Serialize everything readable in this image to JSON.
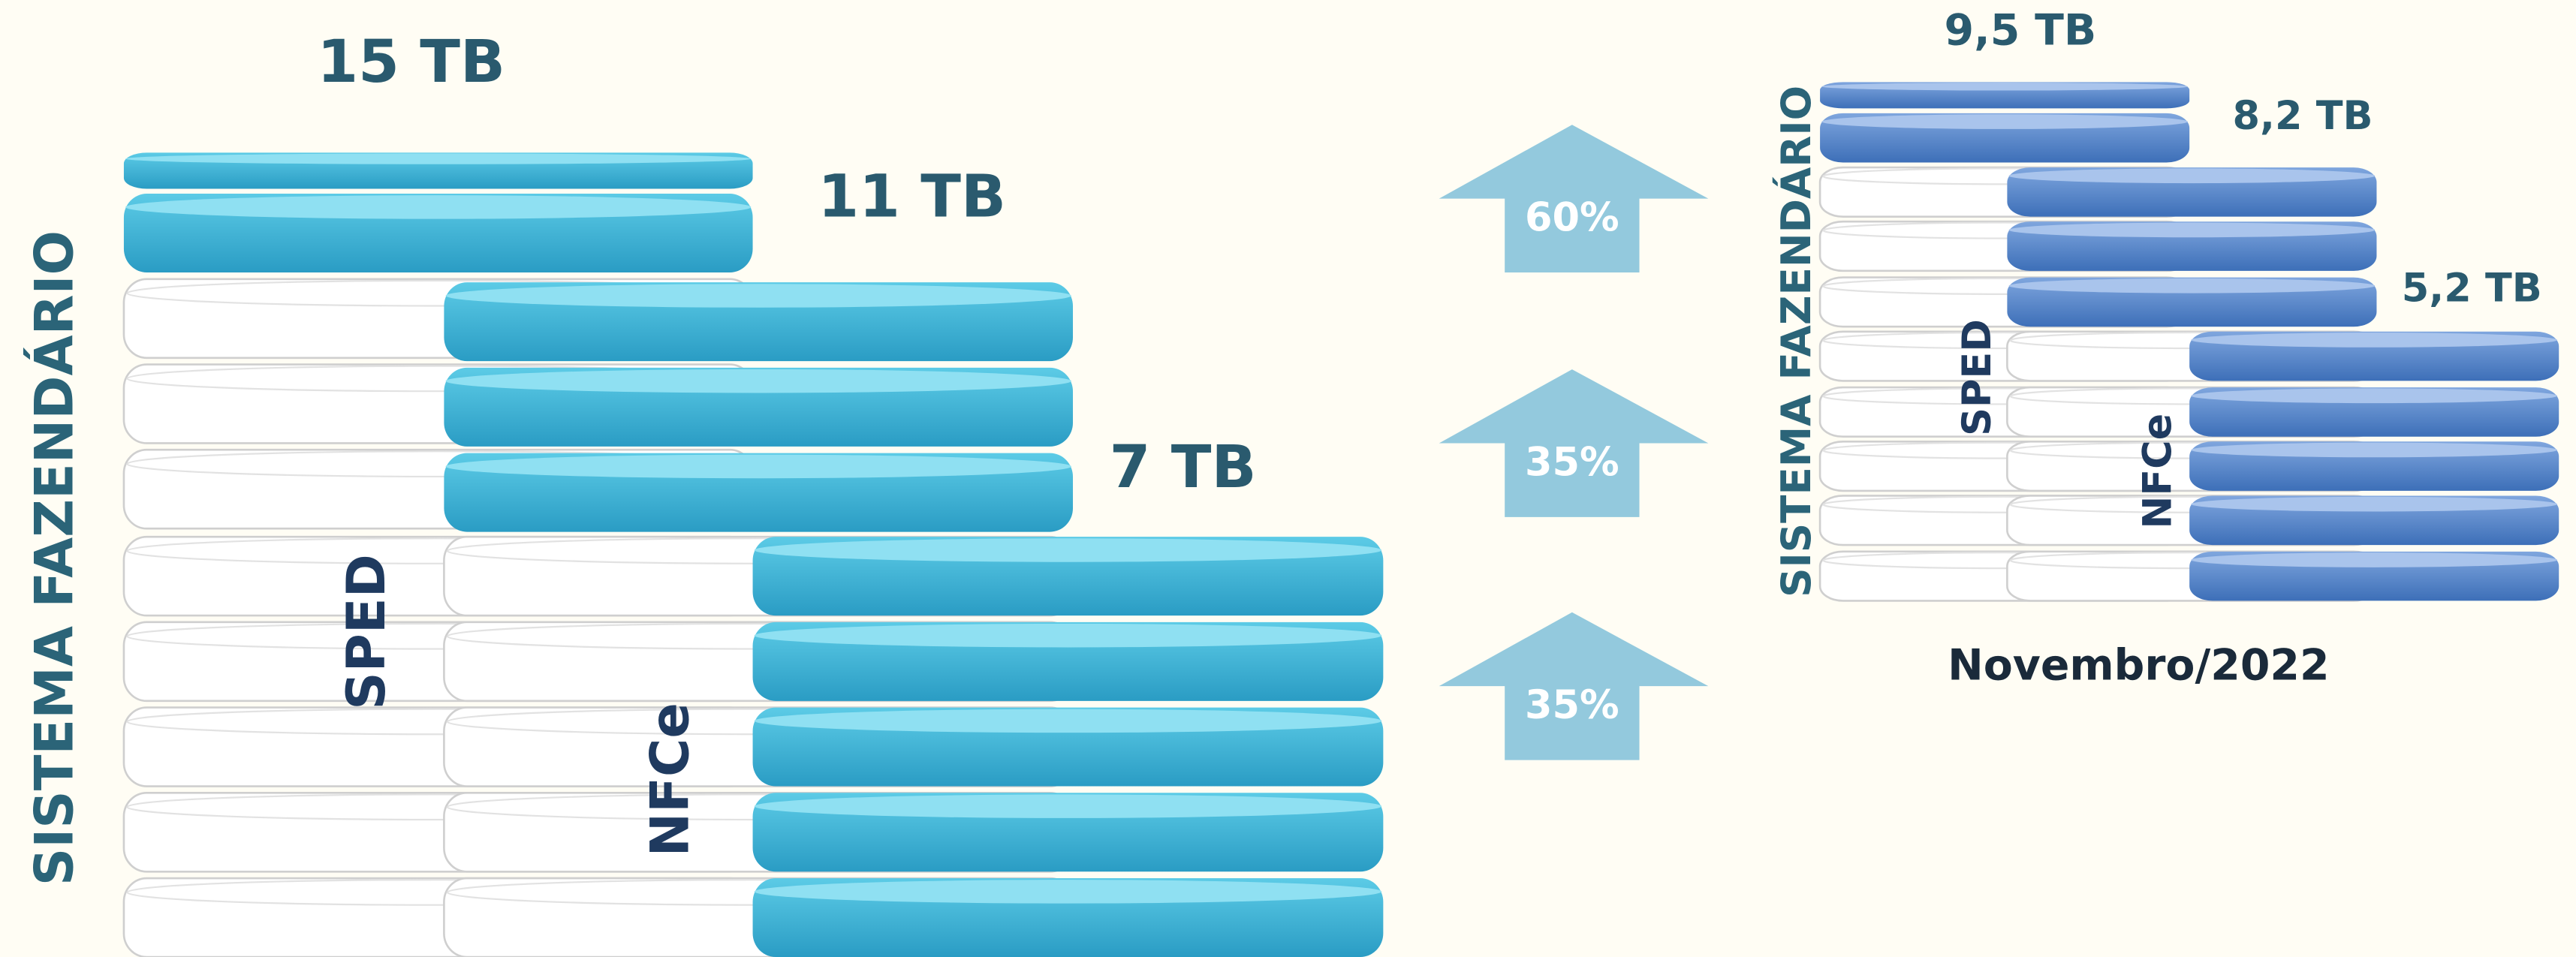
{
  "left": {
    "stack_sizes": [
      "15 TB",
      "11 TB",
      "7 TB"
    ],
    "side_label": "SISTEMA FAZENDÁRIO",
    "stack_labels": [
      "SPED",
      "NFCe"
    ]
  },
  "growth": [
    "60%",
    "35%",
    "35%"
  ],
  "right": {
    "stack_sizes": [
      "9,5 TB",
      "8,2 TB",
      "5,2 TB"
    ],
    "side_label": "SISTEMA FAZENDÁRIO",
    "stack_labels": [
      "SPED",
      "NFCe"
    ],
    "caption": "Novembro/2022"
  }
}
